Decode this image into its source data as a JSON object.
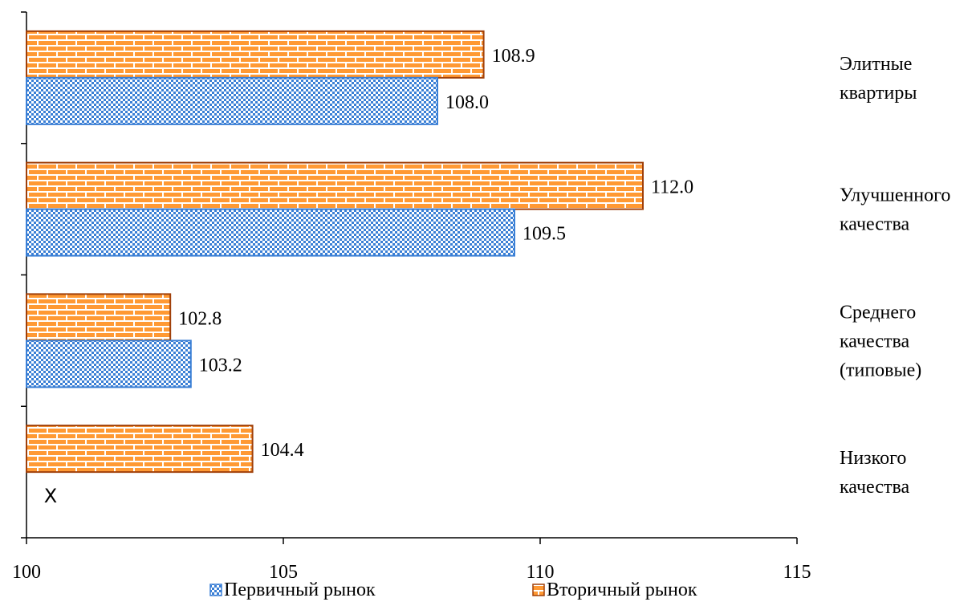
{
  "chart_data": {
    "type": "bar",
    "orientation": "horizontal",
    "categories": [
      [
        "Низкого",
        "качества"
      ],
      [
        "Среднего",
        "качества",
        "(типовые)"
      ],
      [
        "Улучшенного",
        "качества"
      ],
      [
        "Элитные",
        "квартиры"
      ]
    ],
    "series": [
      {
        "name": "Первичный рынок",
        "values": [
          null,
          103.2,
          109.5,
          108.0
        ],
        "labels": [
          "",
          "103.2",
          "109.5",
          "108.0"
        ],
        "color": "#3a7fd5",
        "pattern": "checker"
      },
      {
        "name": "Вторичный рынок",
        "values": [
          104.4,
          102.8,
          112.0,
          108.9
        ],
        "labels": [
          "104.4",
          "102.8",
          "112.0",
          "108.9"
        ],
        "color": "#ff9933",
        "border_color": "#a0400a",
        "pattern": "brick"
      }
    ],
    "missing_marker": "Х",
    "x_ticks": [
      "100",
      "105",
      "110",
      "115"
    ],
    "xlim": [
      100,
      115
    ],
    "grid": false,
    "legend_position": "bottom",
    "title": "",
    "xlabel": "",
    "ylabel": ""
  }
}
